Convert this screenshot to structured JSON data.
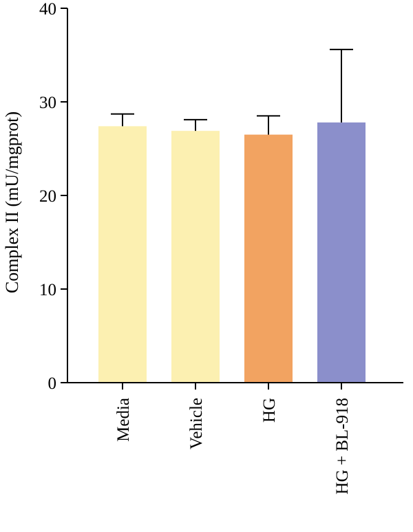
{
  "chart_data": {
    "type": "bar",
    "ylabel": "Complex II (mU/mgprot)",
    "ylim": [
      0,
      40
    ],
    "yticks": [
      "0",
      "10",
      "20",
      "30",
      "40"
    ],
    "categories": [
      "Media",
      "Vehicle",
      "HG",
      "HG + BL-918"
    ],
    "values": [
      27.4,
      26.9,
      26.5,
      27.8
    ],
    "errors": [
      1.3,
      1.2,
      2.0,
      7.8
    ],
    "colors": [
      "#fcf0b1",
      "#fcf0b1",
      "#f2a361",
      "#8b8fcb"
    ],
    "grid": false,
    "legend": "none"
  }
}
